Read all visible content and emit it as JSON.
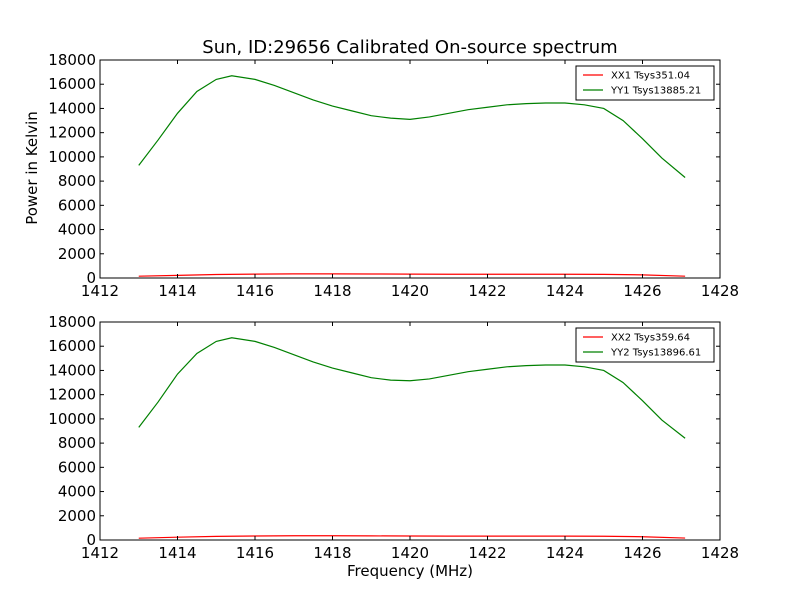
{
  "figure": {
    "title": "Sun, ID:29656 Calibrated On-source spectrum",
    "ylabel": "Power in Kelvin",
    "xlabel": "Frequency (MHz)"
  },
  "chart_data": [
    {
      "type": "line",
      "title": "Sun, ID:29656 Calibrated On-source spectrum",
      "xlabel": "",
      "ylabel": "Power in Kelvin",
      "xlim": [
        1412,
        1428
      ],
      "ylim": [
        0,
        18000
      ],
      "xticks": [
        1412,
        1414,
        1416,
        1418,
        1420,
        1422,
        1424,
        1426,
        1428
      ],
      "yticks": [
        0,
        2000,
        4000,
        6000,
        8000,
        10000,
        12000,
        14000,
        16000,
        18000
      ],
      "grid": false,
      "legend_position": "top-right",
      "series": [
        {
          "name": "XX1 Tsys351.04",
          "color": "#ff0000",
          "x": [
            1413.0,
            1414.0,
            1415.0,
            1416.0,
            1417.0,
            1418.0,
            1419.0,
            1420.0,
            1421.0,
            1422.0,
            1423.0,
            1424.0,
            1425.0,
            1426.0,
            1427.1
          ],
          "y": [
            150,
            220,
            290,
            320,
            340,
            340,
            330,
            320,
            310,
            310,
            310,
            310,
            300,
            260,
            150
          ]
        },
        {
          "name": "YY1 Tsys13885.21",
          "color": "#008000",
          "x": [
            1413.0,
            1413.5,
            1414.0,
            1414.5,
            1415.0,
            1415.4,
            1416.0,
            1416.5,
            1417.0,
            1417.5,
            1418.0,
            1418.5,
            1419.0,
            1419.5,
            1420.0,
            1420.5,
            1421.0,
            1421.5,
            1422.0,
            1422.5,
            1423.0,
            1423.5,
            1424.0,
            1424.5,
            1425.0,
            1425.5,
            1426.0,
            1426.5,
            1427.1
          ],
          "y": [
            9300,
            11400,
            13600,
            15400,
            16400,
            16700,
            16400,
            15900,
            15300,
            14700,
            14200,
            13800,
            13400,
            13200,
            13100,
            13300,
            13600,
            13900,
            14100,
            14300,
            14400,
            14450,
            14450,
            14300,
            14000,
            13000,
            11500,
            9900,
            8300
          ]
        }
      ]
    },
    {
      "type": "line",
      "title": "",
      "xlabel": "Frequency (MHz)",
      "ylabel": "",
      "xlim": [
        1412,
        1428
      ],
      "ylim": [
        0,
        18000
      ],
      "xticks": [
        1412,
        1414,
        1416,
        1418,
        1420,
        1422,
        1424,
        1426,
        1428
      ],
      "yticks": [
        0,
        2000,
        4000,
        6000,
        8000,
        10000,
        12000,
        14000,
        16000,
        18000
      ],
      "grid": false,
      "legend_position": "top-right",
      "series": [
        {
          "name": "XX2 Tsys359.64",
          "color": "#ff0000",
          "x": [
            1413.0,
            1414.0,
            1415.0,
            1416.0,
            1417.0,
            1418.0,
            1419.0,
            1420.0,
            1421.0,
            1422.0,
            1423.0,
            1424.0,
            1425.0,
            1426.0,
            1427.1
          ],
          "y": [
            150,
            230,
            300,
            330,
            350,
            350,
            340,
            330,
            320,
            320,
            320,
            320,
            310,
            270,
            160
          ]
        },
        {
          "name": "YY2 Tsys13896.61",
          "color": "#008000",
          "x": [
            1413.0,
            1413.5,
            1414.0,
            1414.5,
            1415.0,
            1415.4,
            1416.0,
            1416.5,
            1417.0,
            1417.5,
            1418.0,
            1418.5,
            1419.0,
            1419.5,
            1420.0,
            1420.5,
            1421.0,
            1421.5,
            1422.0,
            1422.5,
            1423.0,
            1423.5,
            1424.0,
            1424.5,
            1425.0,
            1425.5,
            1426.0,
            1426.5,
            1427.1
          ],
          "y": [
            9300,
            11400,
            13700,
            15400,
            16400,
            16700,
            16400,
            15900,
            15300,
            14700,
            14200,
            13800,
            13400,
            13200,
            13150,
            13300,
            13600,
            13900,
            14100,
            14300,
            14400,
            14450,
            14450,
            14300,
            14000,
            13000,
            11500,
            9900,
            8400
          ]
        }
      ]
    }
  ]
}
